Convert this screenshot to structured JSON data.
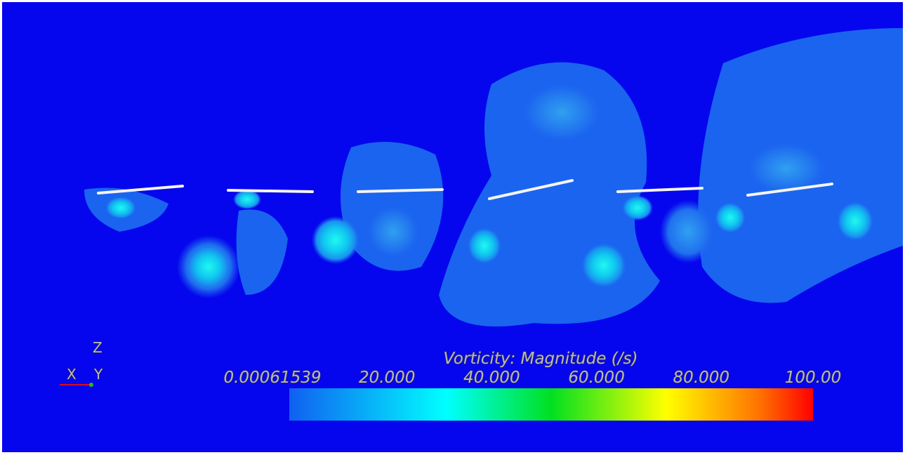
{
  "legend": {
    "title": "Vorticity: Magnitude (/s)",
    "labels": [
      "0.00061539",
      "20.000",
      "40.000",
      "60.000",
      "80.000",
      "100.00"
    ]
  },
  "axes": {
    "z": "Z",
    "x": "X",
    "y": "Y"
  }
}
